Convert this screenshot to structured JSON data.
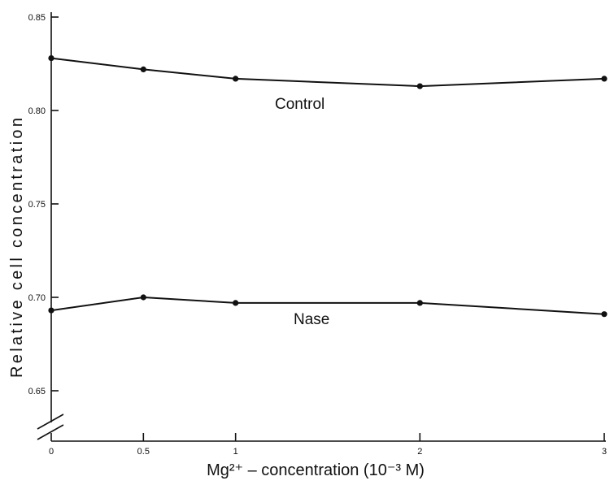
{
  "chart_data": {
    "type": "line",
    "title": "",
    "xlabel": "Mg²⁺ – concentration (10⁻³ M)",
    "ylabel": "Relative cell concentration",
    "x": [
      0,
      0.5,
      1,
      2,
      3
    ],
    "x_tick_labels": [
      "0",
      "0.5",
      "1",
      "2",
      "3"
    ],
    "xlim": [
      0,
      3
    ],
    "y_ticks": [
      "0.85",
      "0.80",
      "0.75",
      "0.70",
      "0.65"
    ],
    "ylim": [
      0.63,
      0.855
    ],
    "y_axis_break": true,
    "grid": false,
    "series": [
      {
        "name": "Control",
        "values": [
          0.828,
          0.822,
          0.817,
          0.813,
          0.817
        ]
      },
      {
        "name": "Nase",
        "values": [
          0.693,
          0.7,
          0.697,
          0.697,
          0.691
        ]
      }
    ]
  }
}
